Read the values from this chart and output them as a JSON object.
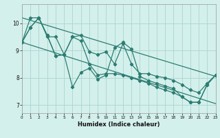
{
  "xlabel": "Humidex (Indice chaleur)",
  "bg_color": "#d4f0ec",
  "grid_color": "#aed8d2",
  "line_color": "#2d7d72",
  "x_ticks": [
    0,
    1,
    2,
    3,
    4,
    5,
    6,
    7,
    8,
    9,
    10,
    11,
    12,
    13,
    14,
    15,
    16,
    17,
    18,
    19,
    20,
    21,
    22,
    23
  ],
  "y_ticks": [
    7,
    8,
    9,
    10
  ],
  "xlim": [
    0,
    23
  ],
  "ylim": [
    6.7,
    10.7
  ],
  "series1": [
    9.3,
    9.85,
    10.2,
    9.55,
    8.8,
    8.85,
    7.65,
    8.2,
    8.35,
    7.95,
    8.1,
    9.1,
    9.3,
    9.05,
    8.05,
    7.9,
    7.8,
    7.7,
    7.6,
    7.3,
    7.1,
    7.1,
    7.75,
    8.1
  ],
  "series2": [
    9.3,
    9.85,
    10.2,
    9.55,
    8.8,
    8.85,
    9.5,
    9.35,
    8.5,
    8.1,
    8.15,
    8.15,
    8.1,
    8.0,
    7.9,
    7.8,
    7.65,
    7.55,
    7.45,
    7.3,
    7.1,
    7.1,
    7.75,
    8.1
  ],
  "series3": [
    9.3,
    10.2,
    10.2,
    9.5,
    9.5,
    8.85,
    9.5,
    9.55,
    8.95,
    8.85,
    8.95,
    8.5,
    9.25,
    8.5,
    8.15,
    8.15,
    8.05,
    8.0,
    7.9,
    7.75,
    7.55,
    7.45,
    7.8,
    8.1
  ],
  "upper_line": [
    [
      0,
      10.2
    ],
    [
      23,
      8.05
    ]
  ],
  "lower_line": [
    [
      0,
      9.3
    ],
    [
      23,
      7.05
    ]
  ]
}
